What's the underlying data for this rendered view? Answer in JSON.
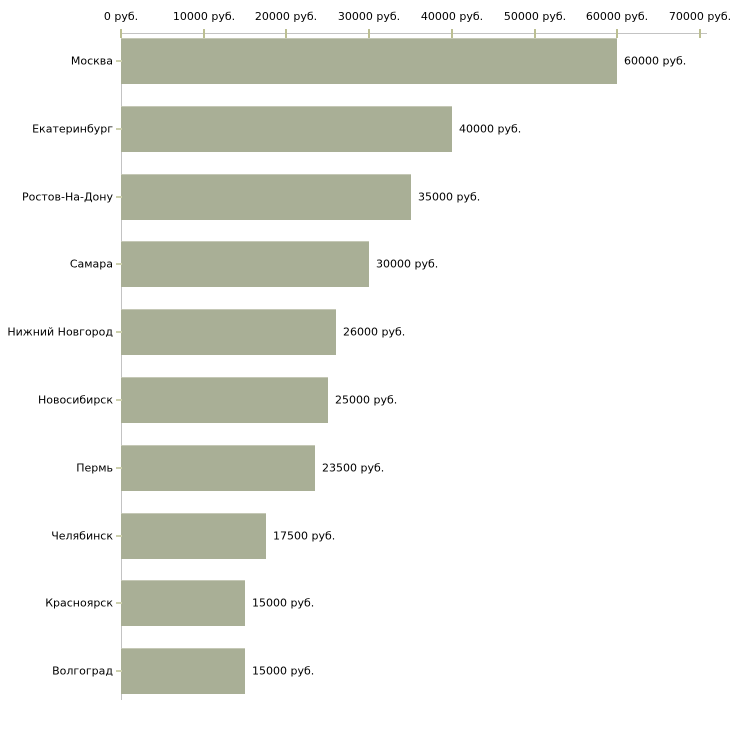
{
  "chart_data": {
    "type": "bar",
    "orientation": "horizontal",
    "title": "",
    "xlabel": "",
    "ylabel": "",
    "unit": "руб.",
    "categories": [
      "Москва",
      "Екатеринбург",
      "Ростов-На-Дону",
      "Самара",
      "Нижний Новгород",
      "Новосибирск",
      "Пермь",
      "Челябинск",
      "Красноярск",
      "Волгоград"
    ],
    "values": [
      60000,
      40000,
      35000,
      30000,
      26000,
      25000,
      23500,
      17500,
      15000,
      15000
    ],
    "value_labels": [
      "60000 руб.",
      "40000 руб.",
      "35000 руб.",
      "30000 руб.",
      "26000 руб.",
      "25000 руб.",
      "23500 руб.",
      "17500 руб.",
      "15000 руб.",
      "15000 руб."
    ],
    "x_axis": {
      "position": "top",
      "range": [
        0,
        70000
      ],
      "ticks": [
        0,
        10000,
        20000,
        30000,
        40000,
        50000,
        60000,
        70000
      ],
      "tick_labels": [
        "0 руб.",
        "10000 руб.",
        "20000 руб.",
        "30000 руб.",
        "40000 руб.",
        "50000 руб.",
        "60000 руб.",
        "70000 руб."
      ]
    },
    "legend": null,
    "grid": false,
    "colors": {
      "background": "#ffffff",
      "bar": "#a9af96",
      "bar_edge": "#c5c8b6",
      "axis_line": "#c3c3c3",
      "axis_tick": "#bcbf92",
      "category_tick": "#cdd0ae",
      "text": "#000000"
    }
  }
}
